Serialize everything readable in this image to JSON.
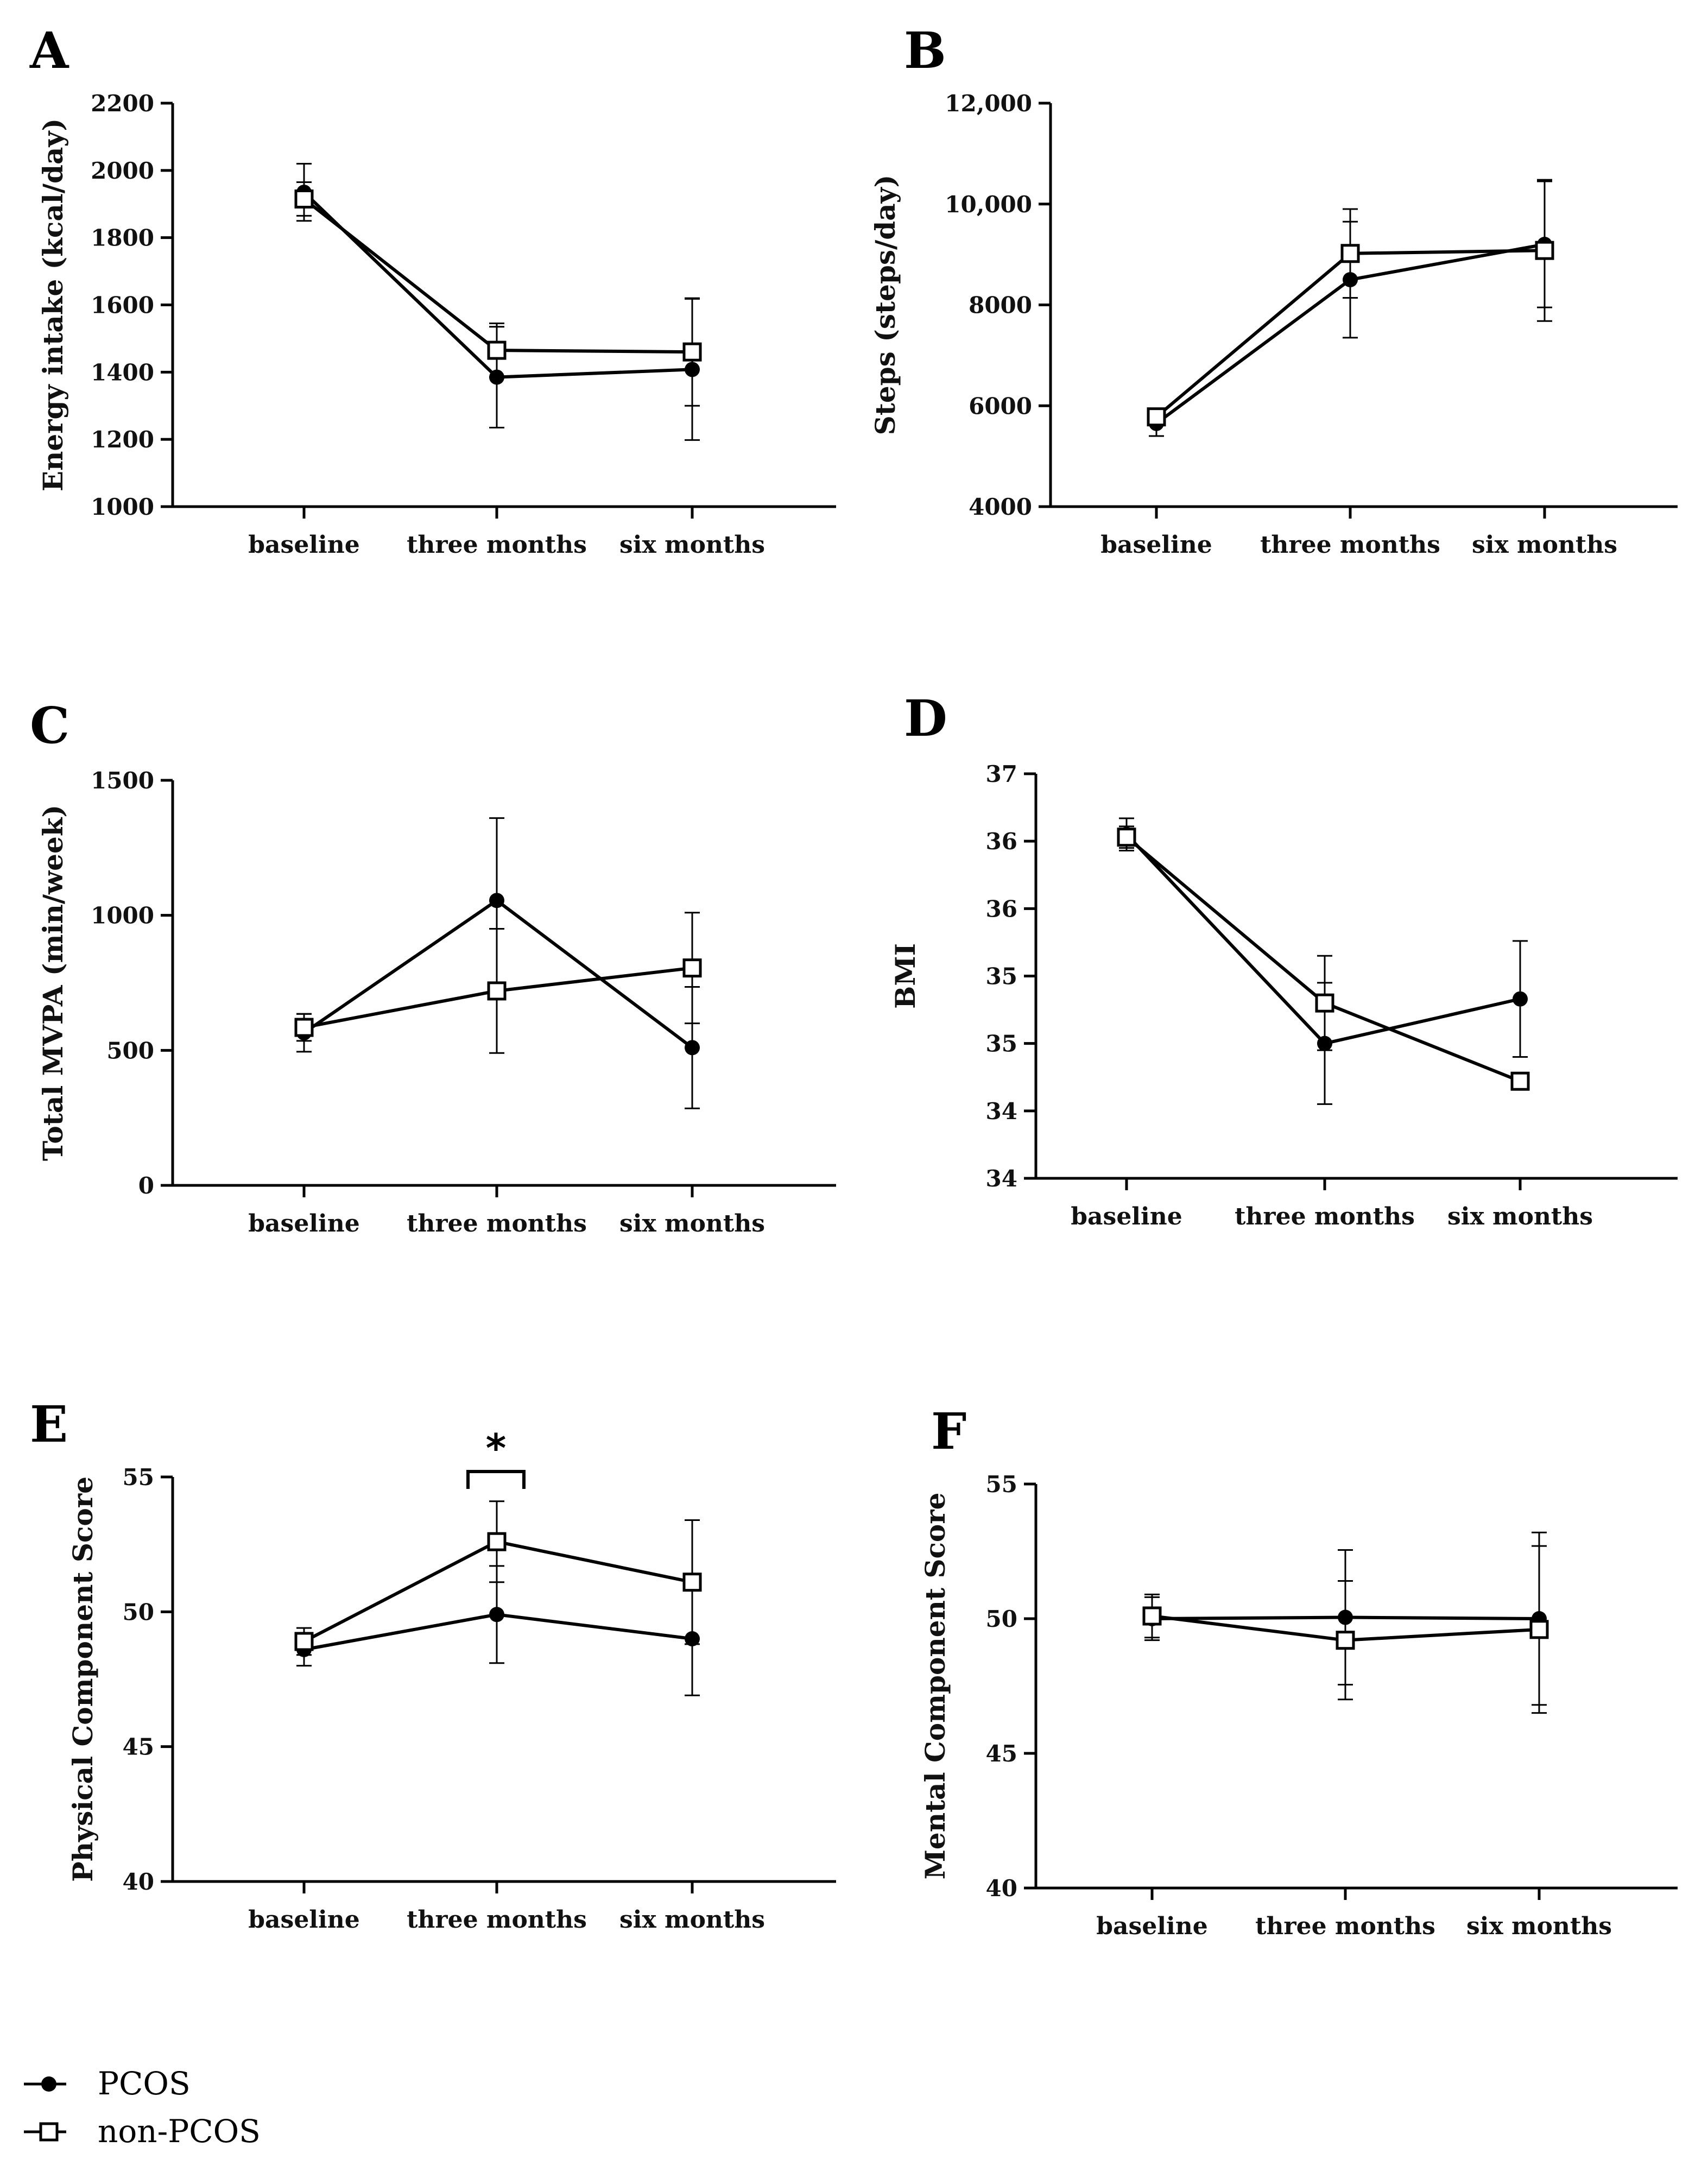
{
  "chart_data": [
    {
      "panel": "A",
      "type": "line",
      "ylabel": "Energy intake (kcal/day)",
      "categories": [
        "baseline",
        "three months",
        "six months"
      ],
      "ylim": [
        1000,
        2200
      ],
      "yticks": [
        1000,
        1200,
        1400,
        1600,
        1800,
        2000,
        2200
      ],
      "ytick_labels": [
        "1000",
        "1200",
        "1400",
        "1600",
        "1800",
        "2000",
        "2200"
      ],
      "series": [
        {
          "name": "PCOS",
          "marker": "filled-circle",
          "values": [
            1935,
            1385,
            1408
          ],
          "error": [
            85,
            150,
            210
          ]
        },
        {
          "name": "non-PCOS",
          "marker": "open-square",
          "values": [
            1915,
            1465,
            1460
          ],
          "error": [
            50,
            80,
            160
          ]
        }
      ]
    },
    {
      "panel": "B",
      "type": "line",
      "ylabel": "Steps (steps/day)",
      "categories": [
        "baseline",
        "three months",
        "six months"
      ],
      "ylim": [
        4000,
        12000
      ],
      "yticks": [
        4000,
        6000,
        8000,
        10000,
        12000
      ],
      "ytick_labels": [
        "4000",
        "6000",
        "8000",
        "10,000",
        "12,000"
      ],
      "series": [
        {
          "name": "PCOS",
          "marker": "filled-circle",
          "values": [
            5650,
            8500,
            9200
          ],
          "error": [
            250,
            1150,
            1250
          ]
        },
        {
          "name": "non-PCOS",
          "marker": "open-square",
          "values": [
            5780,
            9020,
            9080
          ],
          "error": [
            150,
            880,
            1400
          ]
        }
      ]
    },
    {
      "panel": "C",
      "type": "line",
      "ylabel": "Total MVPA (min/week)",
      "categories": [
        "baseline",
        "three months",
        "six months"
      ],
      "ylim": [
        0,
        1500
      ],
      "yticks": [
        0,
        500,
        1000,
        1500
      ],
      "ytick_labels": [
        "0",
        "500",
        "1000",
        "1500"
      ],
      "series": [
        {
          "name": "PCOS",
          "marker": "filled-circle",
          "values": [
            565,
            1055,
            510
          ],
          "error": [
            70,
            305,
            225
          ]
        },
        {
          "name": "non-PCOS",
          "marker": "open-square",
          "values": [
            585,
            720,
            805
          ],
          "error": [
            50,
            230,
            205
          ]
        }
      ]
    },
    {
      "panel": "D",
      "type": "line",
      "ylabel": "BMI",
      "categories": [
        "baseline",
        "three months",
        "six months"
      ],
      "ylim": [
        33.5,
        36.5
      ],
      "yticks": [
        33.5,
        34,
        34.5,
        35,
        35.5,
        36,
        36.5
      ],
      "ytick_labels": [
        "34",
        "34",
        "35",
        "35",
        "36",
        "36",
        "37"
      ],
      "series": [
        {
          "name": "PCOS",
          "marker": "filled-circle",
          "values": [
            36.05,
            34.5,
            34.83
          ],
          "error": [
            0.12,
            0.45,
            0.43
          ]
        },
        {
          "name": "non-PCOS",
          "marker": "open-square",
          "values": [
            36.03,
            34.8,
            34.22
          ],
          "error": [
            0.08,
            0.35,
            0.05
          ]
        }
      ]
    },
    {
      "panel": "E",
      "type": "line",
      "ylabel": "Physical Component Score",
      "categories": [
        "baseline",
        "three months",
        "six months"
      ],
      "ylim": [
        40,
        55
      ],
      "yticks": [
        40,
        45,
        50,
        55
      ],
      "ytick_labels": [
        "40",
        "45",
        "50",
        "55"
      ],
      "annotation": "*",
      "series": [
        {
          "name": "PCOS",
          "marker": "filled-circle",
          "values": [
            48.6,
            49.9,
            49.0
          ],
          "error": [
            0.6,
            1.8,
            2.1
          ]
        },
        {
          "name": "non-PCOS",
          "marker": "open-square",
          "values": [
            48.9,
            52.6,
            51.1
          ],
          "error": [
            0.5,
            1.5,
            2.3
          ]
        }
      ]
    },
    {
      "panel": "F",
      "type": "line",
      "ylabel": "Mental Component Score",
      "categories": [
        "baseline",
        "three months",
        "six months"
      ],
      "ylim": [
        40,
        55
      ],
      "yticks": [
        40,
        45,
        50,
        55
      ],
      "ytick_labels": [
        "40",
        "45",
        "50",
        "55"
      ],
      "series": [
        {
          "name": "PCOS",
          "marker": "filled-circle",
          "values": [
            50.0,
            50.05,
            50.0
          ],
          "error": [
            0.8,
            2.5,
            3.2
          ]
        },
        {
          "name": "non-PCOS",
          "marker": "open-square",
          "values": [
            50.1,
            49.2,
            49.6
          ],
          "error": [
            0.8,
            2.2,
            3.1
          ]
        }
      ]
    }
  ],
  "legend": [
    {
      "label": "PCOS",
      "marker": "filled-circle"
    },
    {
      "label": "non-PCOS",
      "marker": "open-square"
    }
  ],
  "colors": {
    "line": "#000000",
    "background": "#ffffff"
  }
}
